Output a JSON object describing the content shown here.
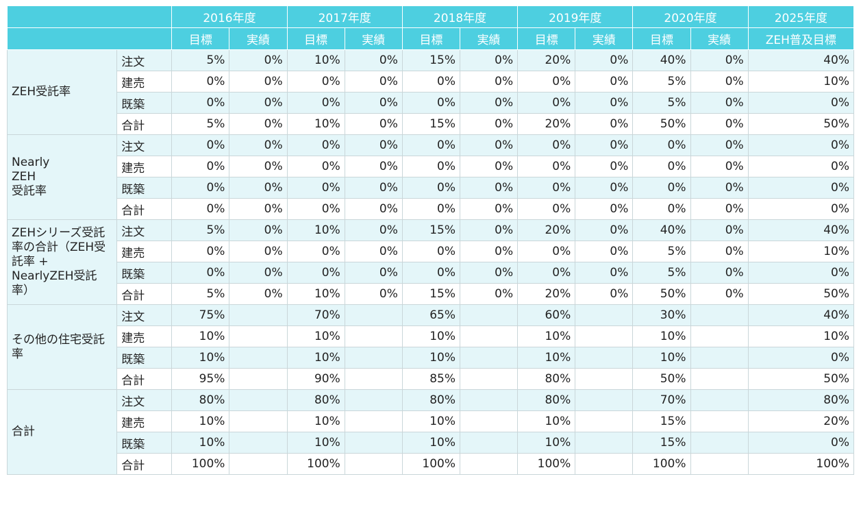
{
  "header": {
    "years": [
      "2016年度",
      "2017年度",
      "2018年度",
      "2019年度",
      "2020年度",
      "2025年度"
    ],
    "target_label": "目標",
    "actual_label": "実績",
    "last_sub_label": "ZEH普及目標"
  },
  "groups": [
    {
      "label": "ZEH受託率",
      "rows": [
        {
          "sub": "注文",
          "values": [
            "5%",
            "0%",
            "10%",
            "0%",
            "15%",
            "0%",
            "20%",
            "0%",
            "40%",
            "0%",
            "40%"
          ]
        },
        {
          "sub": "建売",
          "values": [
            "0%",
            "0%",
            "0%",
            "0%",
            "0%",
            "0%",
            "0%",
            "0%",
            "5%",
            "0%",
            "10%"
          ]
        },
        {
          "sub": "既築",
          "values": [
            "0%",
            "0%",
            "0%",
            "0%",
            "0%",
            "0%",
            "0%",
            "0%",
            "5%",
            "0%",
            "0%"
          ]
        },
        {
          "sub": "合計",
          "values": [
            "5%",
            "0%",
            "10%",
            "0%",
            "15%",
            "0%",
            "20%",
            "0%",
            "50%",
            "0%",
            "50%"
          ]
        }
      ]
    },
    {
      "label": "Nearly\nZEH\n受託率",
      "rows": [
        {
          "sub": "注文",
          "values": [
            "0%",
            "0%",
            "0%",
            "0%",
            "0%",
            "0%",
            "0%",
            "0%",
            "0%",
            "0%",
            "0%"
          ]
        },
        {
          "sub": "建売",
          "values": [
            "0%",
            "0%",
            "0%",
            "0%",
            "0%",
            "0%",
            "0%",
            "0%",
            "0%",
            "0%",
            "0%"
          ]
        },
        {
          "sub": "既築",
          "values": [
            "0%",
            "0%",
            "0%",
            "0%",
            "0%",
            "0%",
            "0%",
            "0%",
            "0%",
            "0%",
            "0%"
          ]
        },
        {
          "sub": "合計",
          "values": [
            "0%",
            "0%",
            "0%",
            "0%",
            "0%",
            "0%",
            "0%",
            "0%",
            "0%",
            "0%",
            "0%"
          ]
        }
      ]
    },
    {
      "label": "ZEHシリーズ受託率の合計（ZEH受託率 + NearlyZEH受託率）",
      "rows": [
        {
          "sub": "注文",
          "values": [
            "5%",
            "0%",
            "10%",
            "0%",
            "15%",
            "0%",
            "20%",
            "0%",
            "40%",
            "0%",
            "40%"
          ]
        },
        {
          "sub": "建売",
          "values": [
            "0%",
            "0%",
            "0%",
            "0%",
            "0%",
            "0%",
            "0%",
            "0%",
            "5%",
            "0%",
            "10%"
          ]
        },
        {
          "sub": "既築",
          "values": [
            "0%",
            "0%",
            "0%",
            "0%",
            "0%",
            "0%",
            "0%",
            "0%",
            "5%",
            "0%",
            "0%"
          ]
        },
        {
          "sub": "合計",
          "values": [
            "5%",
            "0%",
            "10%",
            "0%",
            "15%",
            "0%",
            "20%",
            "0%",
            "50%",
            "0%",
            "50%"
          ]
        }
      ]
    },
    {
      "label": "その他の住宅受託率",
      "rows": [
        {
          "sub": "注文",
          "values": [
            "75%",
            "",
            "70%",
            "",
            "65%",
            "",
            "60%",
            "",
            "30%",
            "",
            "40%"
          ]
        },
        {
          "sub": "建売",
          "values": [
            "10%",
            "",
            "10%",
            "",
            "10%",
            "",
            "10%",
            "",
            "10%",
            "",
            "10%"
          ]
        },
        {
          "sub": "既築",
          "values": [
            "10%",
            "",
            "10%",
            "",
            "10%",
            "",
            "10%",
            "",
            "10%",
            "",
            "0%"
          ]
        },
        {
          "sub": "合計",
          "values": [
            "95%",
            "",
            "90%",
            "",
            "85%",
            "",
            "80%",
            "",
            "50%",
            "",
            "50%"
          ]
        }
      ]
    },
    {
      "label": "合計",
      "rows": [
        {
          "sub": "注文",
          "values": [
            "80%",
            "",
            "80%",
            "",
            "80%",
            "",
            "80%",
            "",
            "70%",
            "",
            "80%"
          ]
        },
        {
          "sub": "建売",
          "values": [
            "10%",
            "",
            "10%",
            "",
            "10%",
            "",
            "10%",
            "",
            "15%",
            "",
            "20%"
          ]
        },
        {
          "sub": "既築",
          "values": [
            "10%",
            "",
            "10%",
            "",
            "10%",
            "",
            "10%",
            "",
            "15%",
            "",
            "0%"
          ]
        },
        {
          "sub": "合計",
          "values": [
            "100%",
            "",
            "100%",
            "",
            "100%",
            "",
            "100%",
            "",
            "100%",
            "",
            "100%"
          ]
        }
      ]
    }
  ],
  "colors": {
    "header_bg": "#4dcfe0",
    "header_text": "#ffffff",
    "alt_row_bg": "#e4f6f9",
    "border": "#c9d6d9"
  }
}
